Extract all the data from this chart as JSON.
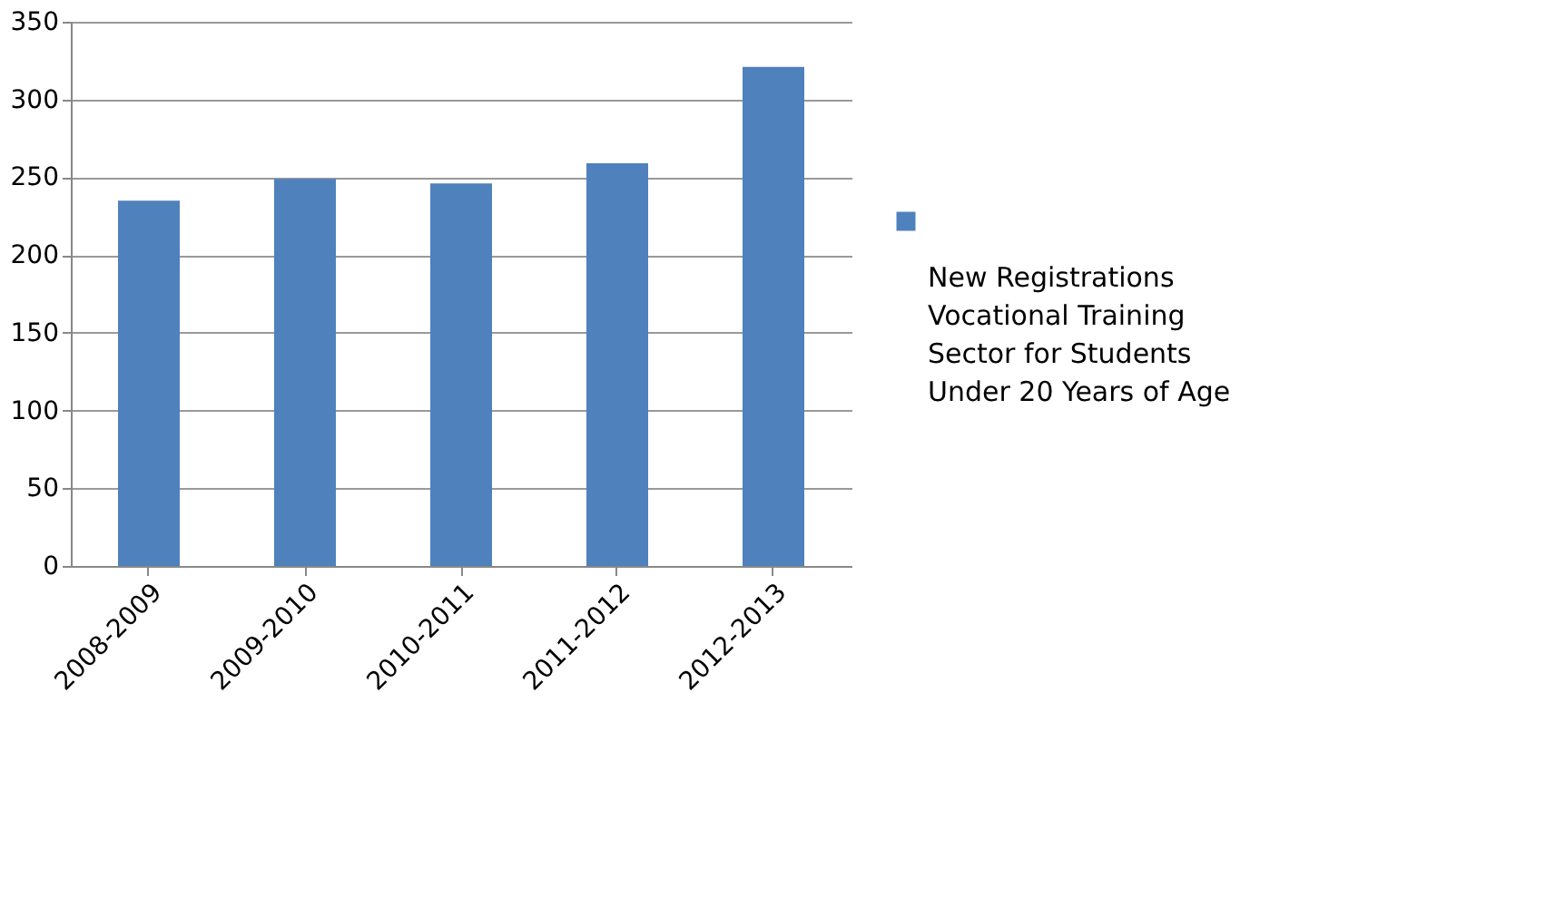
{
  "chart_data": {
    "type": "bar",
    "categories": [
      "2008-2009",
      "2009-2010",
      "2010-2011",
      "2011-2012",
      "2012-2013"
    ],
    "series": [
      {
        "name": "New Registrations Vocational Training Sector for Students Under 20 Years of Age",
        "color": "#4f81bd",
        "values": [
          235,
          249,
          246,
          259,
          321
        ]
      }
    ],
    "ylim": [
      0,
      350
    ],
    "yticks": [
      0,
      50,
      100,
      150,
      200,
      250,
      300,
      350
    ],
    "grid": "y",
    "legend": "right"
  }
}
